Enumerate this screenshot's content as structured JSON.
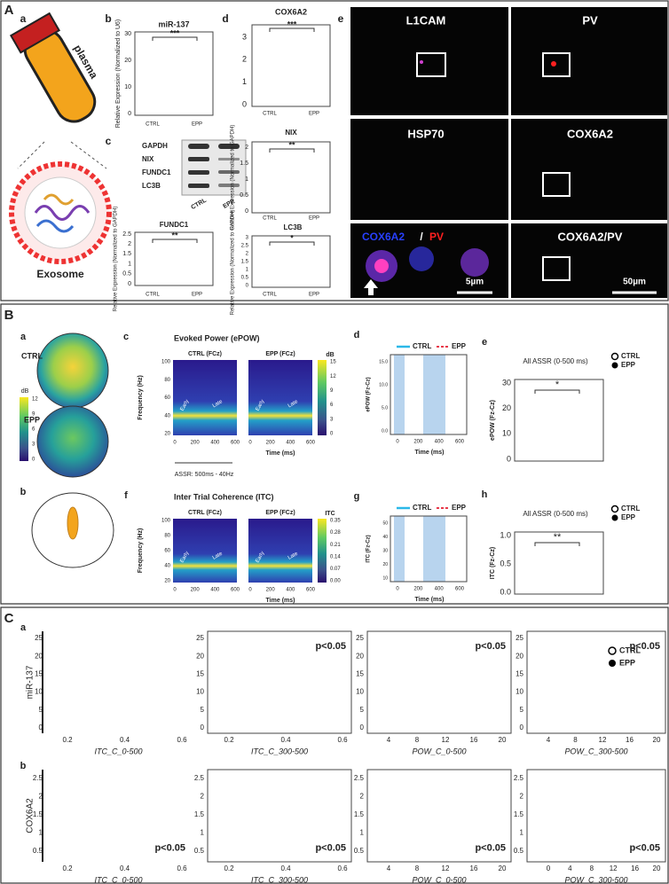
{
  "section_a": {
    "label": "A",
    "a": {
      "label": "a",
      "tube": "plasma",
      "exosome": "Exosome"
    },
    "b": {
      "label": "b",
      "title": "miR-137",
      "ylabel": "Relative Expression (Normalized to U6)",
      "yticks": [
        "0",
        "10",
        "20",
        "30"
      ],
      "categories": [
        "CTRL",
        "EPP"
      ],
      "sig": "***"
    },
    "c": {
      "label": "c",
      "rows": [
        "GAPDH",
        "NIX",
        "FUNDC1",
        "LC3B"
      ],
      "lanes": [
        "CTRL",
        "EPP"
      ]
    },
    "fundc1": {
      "title": "FUNDC1",
      "ylabel": "Relative Expression (Normalized to GAPDH)",
      "yticks": [
        "0",
        "0.5",
        "1",
        "1.5",
        "2",
        "2.5"
      ],
      "categories": [
        "CTRL",
        "EPP"
      ],
      "sig": "**"
    },
    "d": {
      "label": "d",
      "title": "COX6A2",
      "yticks": [
        "0",
        "1",
        "2",
        "3"
      ],
      "categories": [
        "CTRL",
        "EPP"
      ],
      "sig": "***"
    },
    "nix": {
      "title": "NIX",
      "ylabel": "Relative Expression (Normalized to GAPDH)",
      "yticks": [
        "0",
        "0.5",
        "1",
        "1.5",
        "2"
      ],
      "categories": [
        "CTRL",
        "EPP"
      ],
      "sig": "**"
    },
    "lc3b": {
      "title": "LC3B",
      "ylabel": "Relative Expression (Normalized to GAPDH)",
      "yticks": [
        "0",
        "0.5",
        "1",
        "1.5",
        "2",
        "2.5",
        "3"
      ],
      "categories": [
        "CTRL",
        "EPP"
      ],
      "sig": "*"
    },
    "e": {
      "label": "e",
      "panels": [
        "L1CAM",
        "PV",
        "HSP70",
        "COX6A2",
        "COX6A2/PV"
      ],
      "inset_blue": "COX6A2",
      "inset_slash": "/",
      "inset_red": "PV",
      "scale_small": "5µm",
      "scale_large": "50µm"
    }
  },
  "section_b": {
    "label": "B",
    "a": {
      "label": "a",
      "groups": [
        "CTRL",
        "EPP"
      ],
      "colorbar_title": "dB",
      "colorbar_ticks": [
        "12",
        "9",
        "6",
        "3",
        "0"
      ]
    },
    "b": {
      "label": "b"
    },
    "c": {
      "label": "c",
      "title": "Evoked Power (ePOW)",
      "panels": [
        "CTRL (FCz)",
        "EPP (FCz)"
      ],
      "ylabel": "Frequency (Hz)",
      "yticks": [
        "100",
        "80",
        "60",
        "40",
        "20"
      ],
      "xticks": [
        "0",
        "200",
        "400",
        "600"
      ],
      "xlabel": "Time (ms)",
      "early": "Early",
      "late": "Late",
      "stimulus": "ASSR: 500ms - 40Hz",
      "colorbar_title": "dB",
      "colorbar_ticks": [
        "15",
        "12",
        "9",
        "6",
        "3",
        "0"
      ]
    },
    "d": {
      "label": "d",
      "legend": [
        "CTRL",
        "EPP"
      ],
      "ylabel": "ePOW (Fz-Cz)",
      "yticks": [
        "0.0",
        "5.0",
        "10.0",
        "15.0"
      ],
      "xticks": [
        "0",
        "200",
        "400",
        "600"
      ],
      "xlabel": "Time (ms)"
    },
    "e": {
      "label": "e",
      "title": "All ASSR (0-500 ms)",
      "ylabel": "ePOW (Fz-Cz)",
      "yticks": [
        "0",
        "10",
        "20",
        "30"
      ],
      "legend": [
        "CTRL",
        "EPP"
      ],
      "sig": "*"
    },
    "f": {
      "label": "f",
      "title": "Inter Trial Coherence (ITC)",
      "panels": [
        "CTRL (FCz)",
        "EPP (FCz)"
      ],
      "ylabel": "Frequency (Hz)",
      "yticks": [
        "100",
        "80",
        "60",
        "40",
        "20"
      ],
      "xticks": [
        "0",
        "200",
        "400",
        "600"
      ],
      "xlabel": "Time (ms)",
      "early": "Early",
      "late": "Late",
      "colorbar_title": "ITC",
      "colorbar_ticks": [
        "0.35",
        "0.28",
        "0.21",
        "0.14",
        "0.07",
        "0.00"
      ]
    },
    "g": {
      "label": "g",
      "legend": [
        "CTRL",
        "EPP"
      ],
      "ylabel": "ITC (Fz-Cz)",
      "yticks": [
        "10",
        "20",
        "30",
        "40",
        "50"
      ],
      "xticks": [
        "0",
        "200",
        "400",
        "600"
      ],
      "xlabel": "Time (ms)"
    },
    "h": {
      "label": "h",
      "title": "All ASSR (0-500 ms)",
      "ylabel": "ITC (Fz-Cz)",
      "yticks": [
        "0.0",
        "0.5",
        "1.0"
      ],
      "legend": [
        "CTRL",
        "EPP"
      ],
      "sig": "**"
    }
  },
  "section_c": {
    "label": "C",
    "legend": [
      "CTRL",
      "EPP"
    ],
    "a": {
      "label": "a",
      "ylabel": "miR-137",
      "yticks": [
        "0",
        "5",
        "10",
        "15",
        "20",
        "25"
      ],
      "plots": [
        {
          "xlabel": "ITC_C_0-500",
          "xticks": [
            "0.2",
            "0.4",
            "0.6"
          ],
          "p": null
        },
        {
          "xlabel": "ITC_C_300-500",
          "xticks": [
            "0.2",
            "0.4",
            "0.6"
          ],
          "p": "p<0.05"
        },
        {
          "xlabel": "POW_C_0-500",
          "xticks": [
            "4",
            "8",
            "12",
            "16",
            "20"
          ],
          "p": "p<0.05"
        },
        {
          "xlabel": "POW_C_300-500",
          "xticks": [
            "4",
            "8",
            "12",
            "16",
            "20"
          ],
          "p": "p<0.05"
        }
      ]
    },
    "b": {
      "label": "b",
      "ylabel": "COX6A2",
      "yticks": [
        "0.5",
        "1",
        "1.5",
        "2",
        "2.5"
      ],
      "plots": [
        {
          "xlabel": "ITC_C_0-500",
          "xticks": [
            "0.2",
            "0.4",
            "0.6"
          ],
          "p": "p<0.05"
        },
        {
          "xlabel": "ITC_C_300-500",
          "xticks": [
            "0.2",
            "0.4",
            "0.6"
          ],
          "p": "p<0.05"
        },
        {
          "xlabel": "POW_C_0-500",
          "xticks": [
            "4",
            "8",
            "12",
            "16",
            "20"
          ],
          "p": "p<0.05"
        },
        {
          "xlabel": "POW_C_300-500",
          "xticks": [
            "0",
            "4",
            "8",
            "12",
            "16",
            "20"
          ],
          "p": "p<0.05"
        }
      ]
    }
  }
}
